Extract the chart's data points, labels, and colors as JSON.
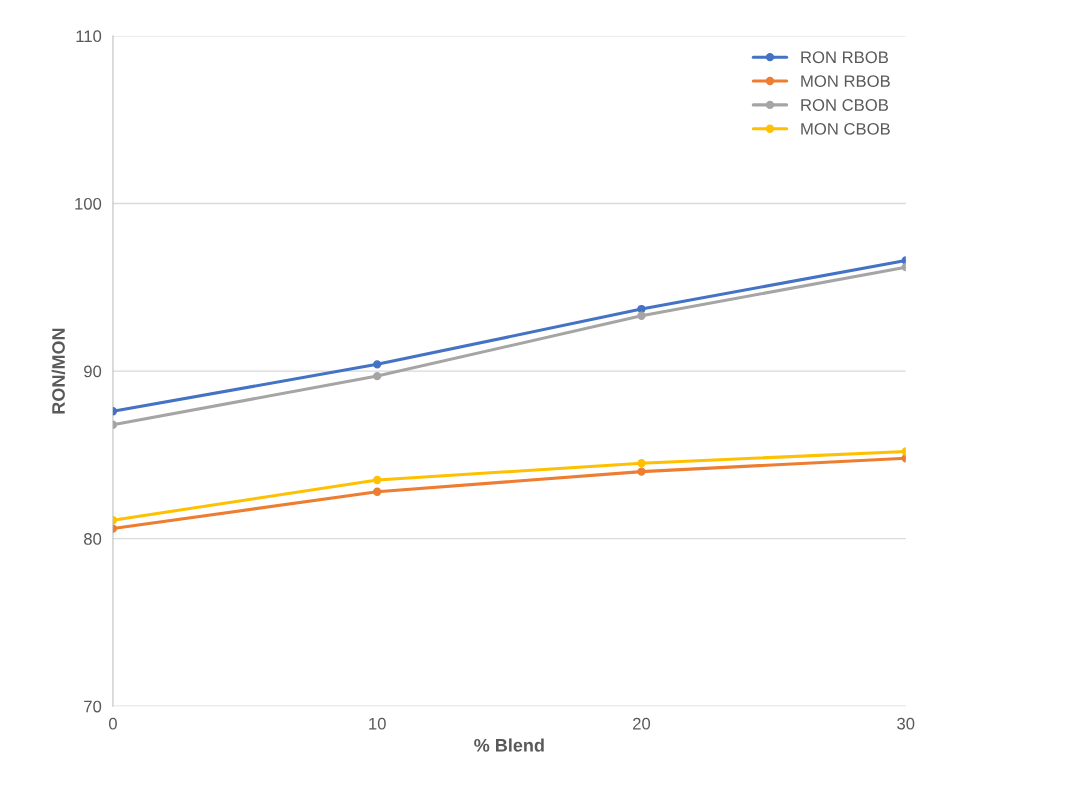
{
  "chart_data": {
    "type": "line",
    "xlabel": "% Blend",
    "ylabel": "RON/MON",
    "x": [
      0,
      10,
      20,
      30
    ],
    "series": [
      {
        "name": "RON RBOB",
        "color": "#4472c4",
        "values": [
          87.6,
          90.4,
          93.7,
          96.6
        ]
      },
      {
        "name": "MON RBOB",
        "color": "#ed7d31",
        "values": [
          80.6,
          82.8,
          84.0,
          84.8
        ]
      },
      {
        "name": "RON CBOB",
        "color": "#a5a5a5",
        "values": [
          86.8,
          89.7,
          93.3,
          96.2
        ]
      },
      {
        "name": "MON CBOB",
        "color": "#ffc000",
        "values": [
          81.1,
          83.5,
          84.5,
          85.2
        ]
      }
    ],
    "xlim": [
      0,
      30
    ],
    "xticks": [
      0,
      10,
      20,
      30
    ],
    "ylim": [
      70,
      110
    ],
    "yticks": [
      70,
      80,
      90,
      100,
      110
    ],
    "grid": "y",
    "legend": "top right",
    "marker": "circle",
    "line_style": "solid"
  }
}
